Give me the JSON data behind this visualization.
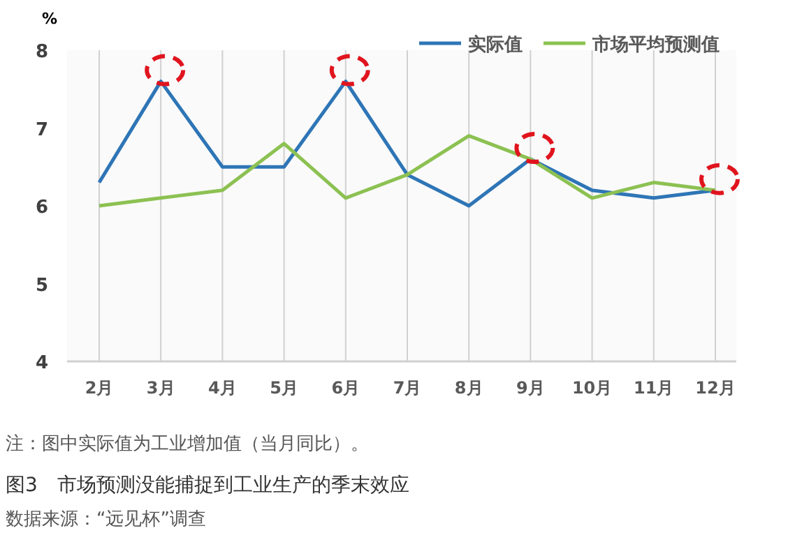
{
  "chart_data": {
    "type": "line",
    "ylabel": "%",
    "categories": [
      "2月",
      "3月",
      "4月",
      "5月",
      "6月",
      "7月",
      "8月",
      "9月",
      "10月",
      "11月",
      "12月"
    ],
    "series": [
      {
        "name": "实际值",
        "color": "#2e75b6",
        "values": [
          6.3,
          7.6,
          6.5,
          6.5,
          7.6,
          6.4,
          6.0,
          6.6,
          6.2,
          6.1,
          6.2
        ]
      },
      {
        "name": "市场平均预测值",
        "color": "#8cc152",
        "values": [
          6.0,
          6.1,
          6.2,
          6.8,
          6.1,
          6.4,
          6.9,
          6.6,
          6.1,
          6.3,
          6.2
        ]
      }
    ],
    "ylim": [
      4,
      8
    ],
    "yticks": [
      4,
      5,
      6,
      7,
      8
    ],
    "grid": "x",
    "legend": "top right",
    "marker": "none",
    "line_style": "solid",
    "title": "图3　市场预测没能捕捉到工业生产的季末效应",
    "annotations": [
      "注：图中实际值为工业增加值（当月同比）。",
      "数据来源：“远见杯”调查"
    ]
  }
}
